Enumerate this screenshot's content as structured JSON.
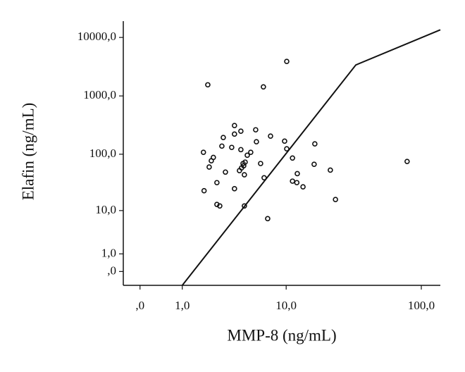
{
  "chart_data": {
    "type": "scatter",
    "x_label": "MMP-8 (ng/mL)",
    "y_label": "Elafin (ng/mL)",
    "x_scale": "log1p",
    "y_scale": "log1p",
    "xlim": [
      -0.24,
      137
    ],
    "ylim": [
      -0.42,
      19000
    ],
    "xticks": [
      {
        "value": 0,
        "label": ",0"
      },
      {
        "value": 1,
        "label": "1,0"
      },
      {
        "value": 10,
        "label": "10,0"
      },
      {
        "value": 100,
        "label": "100,0"
      }
    ],
    "yticks": [
      {
        "value": 0,
        "label": ",0"
      },
      {
        "value": 1,
        "label": "1,0"
      },
      {
        "value": 10,
        "label": "10,0"
      },
      {
        "value": 100,
        "label": "100,0"
      },
      {
        "value": 1000,
        "label": "1000,0"
      },
      {
        "value": 10000,
        "label": "10000,0"
      }
    ],
    "color": "#111111",
    "x": [
      2.04,
      10.1,
      6.57,
      79,
      1.83,
      2.11,
      2.22,
      2.33,
      2.92,
      2.83,
      3.06,
      2.53,
      1.86,
      3.71,
      3.71,
      4.23,
      3.5,
      4.23,
      4.81,
      5.15,
      4.42,
      4.61,
      4.48,
      4.29,
      4.11,
      4.54,
      3.71,
      2.53,
      2.7,
      4.54,
      5.67,
      5.75,
      6.23,
      6.66,
      7.51,
      9.72,
      10.1,
      11.2,
      12.2,
      11.2,
      12.1,
      13.5,
      16.6,
      16.4,
      21.7,
      23.7,
      7.12
    ],
    "y": [
      1550,
      3890,
      1430,
      75,
      108,
      60,
      77,
      88,
      194,
      138,
      49,
      32,
      23,
      311,
      222,
      249,
      131,
      120,
      96,
      108,
      69,
      73,
      63,
      58,
      52,
      44,
      25,
      13,
      12.2,
      12.2,
      263,
      164,
      69,
      39,
      205,
      168,
      124,
      86,
      46,
      34,
      32,
      27,
      151,
      67,
      53,
      16,
      7.0
    ],
    "line": {
      "x": [
        1,
        33.5,
        137
      ],
      "y": [
        -0.42,
        3390,
        13500
      ]
    }
  }
}
